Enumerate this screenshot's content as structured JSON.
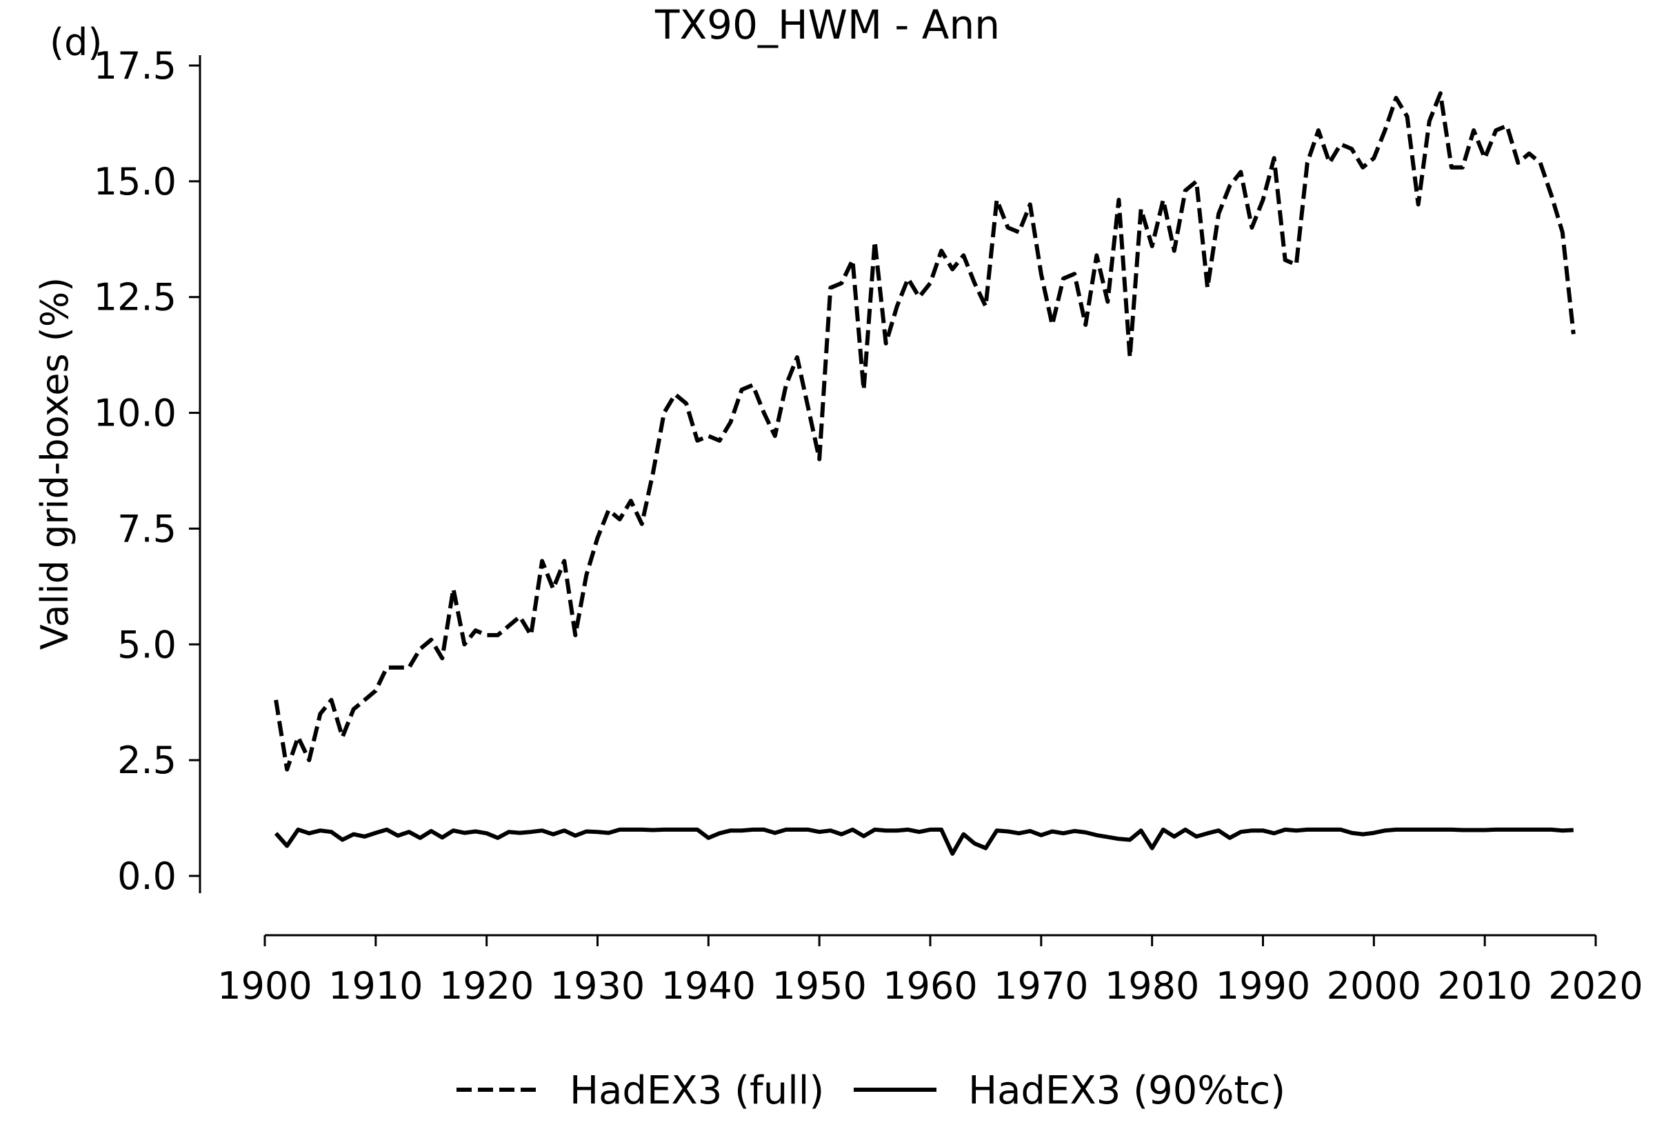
{
  "chart_data": {
    "type": "line",
    "panel_label": "(d)",
    "title": "TX90_HWM - Ann",
    "xlabel": "",
    "ylabel": "Valid grid-boxes (%)",
    "xlim": [
      1900,
      2020
    ],
    "ylim": [
      0.0,
      17.5
    ],
    "xticks": [
      "1900",
      "1910",
      "1920",
      "1930",
      "1940",
      "1950",
      "1960",
      "1970",
      "1980",
      "1990",
      "2000",
      "2010",
      "2020"
    ],
    "yticks": [
      "0.0",
      "2.5",
      "5.0",
      "7.5",
      "10.0",
      "12.5",
      "15.0",
      "17.5"
    ],
    "grid": false,
    "legend_position": "bottom-center",
    "x": [
      1901,
      1902,
      1903,
      1904,
      1905,
      1906,
      1907,
      1908,
      1909,
      1910,
      1911,
      1912,
      1913,
      1914,
      1915,
      1916,
      1917,
      1918,
      1919,
      1920,
      1921,
      1922,
      1923,
      1924,
      1925,
      1926,
      1927,
      1928,
      1929,
      1930,
      1931,
      1932,
      1933,
      1934,
      1935,
      1936,
      1937,
      1938,
      1939,
      1940,
      1941,
      1942,
      1943,
      1944,
      1945,
      1946,
      1947,
      1948,
      1949,
      1950,
      1951,
      1952,
      1953,
      1954,
      1955,
      1956,
      1957,
      1958,
      1959,
      1960,
      1961,
      1962,
      1963,
      1964,
      1965,
      1966,
      1967,
      1968,
      1969,
      1970,
      1971,
      1972,
      1973,
      1974,
      1975,
      1976,
      1977,
      1978,
      1979,
      1980,
      1981,
      1982,
      1983,
      1984,
      1985,
      1986,
      1987,
      1988,
      1989,
      1990,
      1991,
      1992,
      1993,
      1994,
      1995,
      1996,
      1997,
      1998,
      1999,
      2000,
      2001,
      2002,
      2003,
      2004,
      2005,
      2006,
      2007,
      2008,
      2009,
      2010,
      2011,
      2012,
      2013,
      2014,
      2015,
      2016,
      2017,
      2018
    ],
    "series": [
      {
        "name": "HadEX3 (full)",
        "style": "dashed",
        "color": "#000000",
        "values": [
          3.8,
          2.3,
          3.0,
          2.5,
          3.5,
          3.8,
          3.0,
          3.6,
          3.8,
          4.0,
          4.5,
          4.5,
          4.5,
          4.9,
          5.1,
          4.7,
          6.2,
          5.0,
          5.3,
          5.2,
          5.2,
          5.4,
          5.6,
          5.2,
          6.8,
          6.2,
          6.8,
          5.2,
          6.5,
          7.3,
          7.9,
          7.7,
          8.1,
          7.6,
          8.7,
          10.0,
          10.4,
          10.2,
          9.4,
          9.5,
          9.4,
          9.8,
          10.5,
          10.6,
          10.0,
          9.5,
          10.6,
          11.2,
          10.1,
          9.0,
          12.7,
          12.8,
          13.3,
          10.5,
          13.7,
          11.5,
          12.3,
          12.9,
          12.5,
          12.8,
          13.5,
          13.1,
          13.4,
          12.8,
          12.3,
          14.6,
          14.0,
          13.9,
          14.5,
          13.0,
          11.9,
          12.9,
          13.0,
          11.9,
          13.4,
          12.4,
          14.6,
          11.2,
          14.4,
          13.6,
          14.6,
          13.5,
          14.8,
          15.0,
          12.7,
          14.3,
          14.9,
          15.2,
          14.0,
          14.6,
          15.5,
          13.3,
          13.2,
          15.4,
          16.1,
          15.4,
          15.8,
          15.7,
          15.3,
          15.5,
          16.1,
          16.8,
          16.4,
          14.5,
          16.3,
          16.9,
          15.3,
          15.3,
          16.1,
          15.5,
          16.1,
          16.2,
          15.4,
          15.6,
          15.4,
          14.7,
          13.9,
          11.7
        ]
      },
      {
        "name": "HadEX3 (90%tc)",
        "style": "solid",
        "color": "#000000",
        "values": [
          0.92,
          0.65,
          1.0,
          0.92,
          0.98,
          0.95,
          0.78,
          0.9,
          0.85,
          0.93,
          1.0,
          0.87,
          0.95,
          0.82,
          0.97,
          0.83,
          0.98,
          0.93,
          0.96,
          0.92,
          0.82,
          0.95,
          0.93,
          0.95,
          0.98,
          0.9,
          0.98,
          0.87,
          0.96,
          0.95,
          0.93,
          1.0,
          1.0,
          1.0,
          0.99,
          1.0,
          1.0,
          1.0,
          1.0,
          0.82,
          0.92,
          0.98,
          0.98,
          1.0,
          1.0,
          0.93,
          1.0,
          1.0,
          1.0,
          0.95,
          0.98,
          0.9,
          1.0,
          0.86,
          1.0,
          0.98,
          0.98,
          1.0,
          0.95,
          1.0,
          1.0,
          0.48,
          0.9,
          0.7,
          0.6,
          0.98,
          0.96,
          0.92,
          0.97,
          0.88,
          0.96,
          0.92,
          0.97,
          0.94,
          0.88,
          0.84,
          0.8,
          0.78,
          0.98,
          0.6,
          1.0,
          0.85,
          1.0,
          0.85,
          0.92,
          0.98,
          0.82,
          0.95,
          0.98,
          0.98,
          0.92,
          1.0,
          0.98,
          1.0,
          1.0,
          1.0,
          1.0,
          0.93,
          0.9,
          0.93,
          0.98,
          1.0,
          1.0,
          1.0,
          1.0,
          1.0,
          1.0,
          0.99,
          0.99,
          0.99,
          1.0,
          1.0,
          1.0,
          1.0,
          1.0,
          1.0,
          0.98,
          0.99
        ]
      }
    ]
  }
}
